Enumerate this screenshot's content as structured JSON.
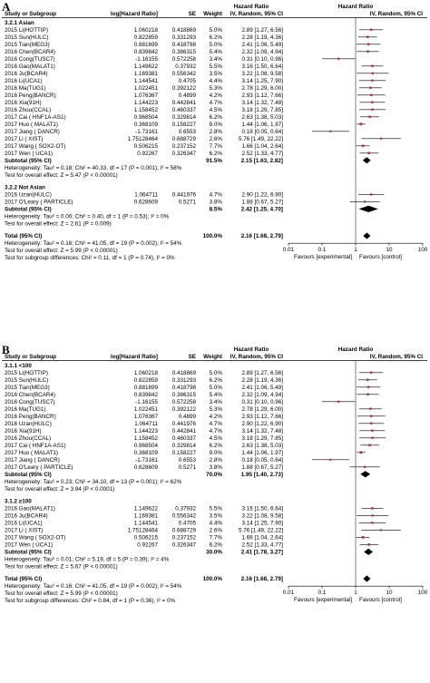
{
  "chart_data": {
    "type": "forest",
    "header": {
      "study_col": "Study or Subgroup",
      "log_hr_col": "log[Hazard Ratio]",
      "se_col": "SE",
      "weight_col": "Weight",
      "hr_col_title": "Hazard Ratio",
      "hr_col_sub": "IV, Random, 95% CI",
      "plot_col_title": "Hazard Ratio",
      "plot_col_sub": "IV, Random, 95% CI"
    },
    "x_scale": "log",
    "xlim": [
      0.01,
      100
    ],
    "x_ticks": [
      "0.01",
      "0.1",
      "1",
      "10",
      "100"
    ],
    "favours_left": "Favours [experimental]",
    "favours_right": "Favours [control]",
    "panels": [
      {
        "letter": "A",
        "subgroups": [
          {
            "title": "3.2.1 Asian",
            "studies": [
              {
                "name": "2015 Li(HOTTIP)",
                "loghr": "1.060218",
                "se": "0.418869",
                "weight": "5.0%",
                "ci_text": "2.89 [1.27, 6.56]",
                "hr": 2.89,
                "lo": 1.27,
                "hi": 6.56
              },
              {
                "name": "2015 Sun(HULC)",
                "loghr": "0.822859",
                "se": "0.331293",
                "weight": "6.2%",
                "ci_text": "2.28 [1.19, 4.36]",
                "hr": 2.28,
                "lo": 1.19,
                "hi": 4.36
              },
              {
                "name": "2015 Tian(MEG3)",
                "loghr": "0.881699",
                "se": "0.418798",
                "weight": "5.0%",
                "ci_text": "2.41 [1.06, 5.49]",
                "hr": 2.41,
                "lo": 1.06,
                "hi": 5.49
              },
              {
                "name": "2016 Chen(BCAR4)",
                "loghr": "0.839842",
                "se": "0.386315",
                "weight": "5.4%",
                "ci_text": "2.32 [1.09, 4.94]",
                "hr": 2.32,
                "lo": 1.09,
                "hi": 4.94
              },
              {
                "name": "2016 Cong(TUSC7)",
                "loghr": "-1.16155",
                "se": "0.572258",
                "weight": "3.4%",
                "ci_text": "0.31 [0.10, 0.96]",
                "hr": 0.31,
                "lo": 0.1,
                "hi": 0.96
              },
              {
                "name": "2016 Gao(MALAT1)",
                "loghr": "1.149622",
                "se": "0.37932",
                "weight": "5.5%",
                "ci_text": "3.16 [1.50, 6.64]",
                "hr": 3.16,
                "lo": 1.5,
                "hi": 6.64
              },
              {
                "name": "2016 Ju(BCAR4)",
                "loghr": "1.169381",
                "se": "0.556342",
                "weight": "3.5%",
                "ci_text": "3.22 [1.08, 9.58]",
                "hr": 3.22,
                "lo": 1.08,
                "hi": 9.58
              },
              {
                "name": "2016 Li(UCA1)",
                "loghr": "1.144541",
                "se": "0.4705",
                "weight": "4.4%",
                "ci_text": "3.14 [1.25, 7.90]",
                "hr": 3.14,
                "lo": 1.25,
                "hi": 7.9
              },
              {
                "name": "2016 Ma(TUG1)",
                "loghr": "1.022451",
                "se": "0.392122",
                "weight": "5.3%",
                "ci_text": "2.78 [1.29, 6.00]",
                "hr": 2.78,
                "lo": 1.29,
                "hi": 6.0
              },
              {
                "name": "2016 Peng(BANCR)",
                "loghr": "1.076367",
                "se": "0.4899",
                "weight": "4.2%",
                "ci_text": "2.93 [1.12, 7.66]",
                "hr": 2.93,
                "lo": 1.12,
                "hi": 7.66
              },
              {
                "name": "2016 Xia(91H)",
                "loghr": "1.144223",
                "se": "0.442841",
                "weight": "4.7%",
                "ci_text": "3.14 [1.32, 7.48]",
                "hr": 3.14,
                "lo": 1.32,
                "hi": 7.48
              },
              {
                "name": "2016 Zhou(CCAL)",
                "loghr": "1.158452",
                "se": "0.460337",
                "weight": "4.5%",
                "ci_text": "3.18 [1.29, 7.85]",
                "hr": 3.18,
                "lo": 1.29,
                "hi": 7.85
              },
              {
                "name": "2017 Cai ( HNF1A-AS1)",
                "loghr": "0.968504",
                "se": "0.329814",
                "weight": "6.2%",
                "ci_text": "2.63 [1.38, 5.03]",
                "hr": 2.63,
                "lo": 1.38,
                "hi": 5.03
              },
              {
                "name": "2017 Huo ( MALAT1)",
                "loghr": "0.368109",
                "se": "0.158227",
                "weight": "9.0%",
                "ci_text": "1.44 [1.06, 1.97]",
                "hr": 1.44,
                "lo": 1.06,
                "hi": 1.97
              },
              {
                "name": "2017 Jiang ( DANCR)",
                "loghr": "-1.73161",
                "se": "0.6553",
                "weight": "2.8%",
                "ci_text": "0.18 [0.05, 0.64]",
                "hr": 0.18,
                "lo": 0.05,
                "hi": 0.64
              },
              {
                "name": "2017 Li ( XIST)",
                "loghr": "1.75128464",
                "se": "0.688729",
                "weight": "2.6%",
                "ci_text": "5.76 [1.49, 22.22]",
                "hr": 5.76,
                "lo": 1.49,
                "hi": 22.22
              },
              {
                "name": "2017 Wang ( SOX2-OT)",
                "loghr": "0.506215",
                "se": "0.237152",
                "weight": "7.7%",
                "ci_text": "1.66 [1.04, 2.64]",
                "hr": 1.66,
                "lo": 1.04,
                "hi": 2.64
              },
              {
                "name": "2017 Wen ( UCA1)",
                "loghr": "0.92267",
                "se": "0.326347",
                "weight": "6.2%",
                "ci_text": "2.52 [1.33, 4.77]",
                "hr": 2.52,
                "lo": 1.33,
                "hi": 4.77
              }
            ],
            "subtotal": {
              "label": "Subtotal (95% CI)",
              "weight": "91.5%",
              "ci_text": "2.15 [1.63, 2.82]",
              "hr": 2.15,
              "lo": 1.63,
              "hi": 2.82
            },
            "heterogeneity": "Heterogeneity: Tau² = 0.18; Chi² = 40.33, df = 17 (P = 0.001); I² = 58%",
            "overall_effect": "Test for overall effect: Z = 5.47 (P < 0.00001)"
          },
          {
            "title": "3.2.2 Not Asian",
            "studies": [
              {
                "name": "2016 Uzan(HULC)",
                "loghr": "1.064711",
                "se": "0.441976",
                "weight": "4.7%",
                "ci_text": "2.90 [1.22, 6.90]",
                "hr": 2.9,
                "lo": 1.22,
                "hi": 6.9
              },
              {
                "name": "2017 O'Leary ( PARTICLE)",
                "loghr": "0.628609",
                "se": "0.5271",
                "weight": "3.8%",
                "ci_text": "1.88 [0.67, 5.27]",
                "hr": 1.88,
                "lo": 0.67,
                "hi": 5.27
              }
            ],
            "subtotal": {
              "label": "Subtotal (95% CI)",
              "weight": "8.5%",
              "ci_text": "2.42 [1.25, 4.70]",
              "hr": 2.42,
              "lo": 1.25,
              "hi": 4.7
            },
            "heterogeneity": "Heterogeneity: Tau² = 0.00; Chi² = 0.40, df = 1 (P = 0.53); I² = 0%",
            "overall_effect": "Test for overall effect: Z = 2.61 (P = 0.009)"
          }
        ],
        "total": {
          "label": "Total (95% CI)",
          "weight": "100.0%",
          "ci_text": "2.16 [1.68, 2.79]",
          "hr": 2.16,
          "lo": 1.68,
          "hi": 2.79
        },
        "total_heterogeneity": "Heterogeneity: Tau² = 0.16; Chi² = 41.05, df = 19 (P = 0.002); I² = 54%",
        "total_effect": "Test for overall effect: Z = 5.99 (P < 0.00001)",
        "subgroup_diff": "Test for subgroup differences: Chi² = 0.11, df = 1 (P = 0.74), I² = 0%"
      },
      {
        "letter": "B",
        "subgroups": [
          {
            "title": "3.1.1 <100",
            "studies": [
              {
                "name": "2015 Li(HOTTIP)",
                "loghr": "1.060218",
                "se": "0.418869",
                "weight": "5.0%",
                "ci_text": "2.89 [1.27, 6.56]",
                "hr": 2.89,
                "lo": 1.27,
                "hi": 6.56
              },
              {
                "name": "2015 Sun(HULC)",
                "loghr": "0.822859",
                "se": "0.331293",
                "weight": "6.2%",
                "ci_text": "2.28 [1.19, 4.36]",
                "hr": 2.28,
                "lo": 1.19,
                "hi": 4.36
              },
              {
                "name": "2015 Tian(MEG3)",
                "loghr": "0.881699",
                "se": "0.418798",
                "weight": "5.0%",
                "ci_text": "2.41 [1.06, 5.49]",
                "hr": 2.41,
                "lo": 1.06,
                "hi": 5.49
              },
              {
                "name": "2016 Chen(BCAR4)",
                "loghr": "0.839842",
                "se": "0.386315",
                "weight": "5.4%",
                "ci_text": "2.32 [1.09, 4.94]",
                "hr": 2.32,
                "lo": 1.09,
                "hi": 4.94
              },
              {
                "name": "2016 Cong(TUSC7)",
                "loghr": "-1.16155",
                "se": "0.572258",
                "weight": "3.4%",
                "ci_text": "0.31 [0.10, 0.96]",
                "hr": 0.31,
                "lo": 0.1,
                "hi": 0.96
              },
              {
                "name": "2016 Ma(TUG1)",
                "loghr": "1.022451",
                "se": "0.392122",
                "weight": "5.3%",
                "ci_text": "2.78 [1.29, 6.00]",
                "hr": 2.78,
                "lo": 1.29,
                "hi": 6.0
              },
              {
                "name": "2016 Peng(BANCR)",
                "loghr": "1.076367",
                "se": "0.4899",
                "weight": "4.2%",
                "ci_text": "2.93 [1.12, 7.66]",
                "hr": 2.93,
                "lo": 1.12,
                "hi": 7.66
              },
              {
                "name": "2016 Uzan(HULC)",
                "loghr": "1.064711",
                "se": "0.441976",
                "weight": "4.7%",
                "ci_text": "2.90 [1.22, 6.90]",
                "hr": 2.9,
                "lo": 1.22,
                "hi": 6.9
              },
              {
                "name": "2016 Xia(91H)",
                "loghr": "1.144223",
                "se": "0.442841",
                "weight": "4.7%",
                "ci_text": "3.14 [1.32, 7.48]",
                "hr": 3.14,
                "lo": 1.32,
                "hi": 7.48
              },
              {
                "name": "2016 Zhou(CCAL)",
                "loghr": "1.158452",
                "se": "0.460337",
                "weight": "4.5%",
                "ci_text": "3.18 [1.29, 7.85]",
                "hr": 3.18,
                "lo": 1.29,
                "hi": 7.85
              },
              {
                "name": "2017 Cai ( HNF1A-AS1)",
                "loghr": "0.968504",
                "se": "0.329814",
                "weight": "6.2%",
                "ci_text": "2.63 [1.38, 5.03]",
                "hr": 2.63,
                "lo": 1.38,
                "hi": 5.03
              },
              {
                "name": "2017 Huo ( MALAT1)",
                "loghr": "0.368109",
                "se": "0.158227",
                "weight": "9.0%",
                "ci_text": "1.44 [1.06, 1.97]",
                "hr": 1.44,
                "lo": 1.06,
                "hi": 1.97
              },
              {
                "name": "2017 Jiang ( DANCR)",
                "loghr": "-1.73161",
                "se": "0.6553",
                "weight": "2.8%",
                "ci_text": "0.18 [0.05, 0.64]",
                "hr": 0.18,
                "lo": 0.05,
                "hi": 0.64
              },
              {
                "name": "2017 O'Leary ( PARTICLE)",
                "loghr": "0.628609",
                "se": "0.5271",
                "weight": "3.8%",
                "ci_text": "1.88 [0.67, 5.27]",
                "hr": 1.88,
                "lo": 0.67,
                "hi": 5.27
              }
            ],
            "subtotal": {
              "label": "Subtotal (95% CI)",
              "weight": "70.0%",
              "ci_text": "1.95 [1.40, 2.73]",
              "hr": 1.95,
              "lo": 1.4,
              "hi": 2.73
            },
            "heterogeneity": "Heterogeneity: Tau² = 0.23; Chi² = 34.10, df = 13 (P = 0.001); I² = 62%",
            "overall_effect": "Test for overall effect: Z = 3.94 (P < 0.0001)"
          },
          {
            "title": "3.1.2 ≥100",
            "studies": [
              {
                "name": "2016 Gao(MALAT1)",
                "loghr": "1.149622",
                "se": "0.37932",
                "weight": "5.5%",
                "ci_text": "3.16 [1.50, 6.64]",
                "hr": 3.16,
                "lo": 1.5,
                "hi": 6.64
              },
              {
                "name": "2016 Ju(BCAR4)",
                "loghr": "1.169381",
                "se": "0.556342",
                "weight": "3.5%",
                "ci_text": "3.22 [1.08, 9.58]",
                "hr": 3.22,
                "lo": 1.08,
                "hi": 9.58
              },
              {
                "name": "2016 Li(UCA1)",
                "loghr": "1.144541",
                "se": "0.4705",
                "weight": "4.4%",
                "ci_text": "3.14 [1.25, 7.90]",
                "hr": 3.14,
                "lo": 1.25,
                "hi": 7.9
              },
              {
                "name": "2017 Li ( XIST)",
                "loghr": "1.75128464",
                "se": "0.688729",
                "weight": "2.6%",
                "ci_text": "5.76 [1.49, 22.22]",
                "hr": 5.76,
                "lo": 1.49,
                "hi": 22.22
              },
              {
                "name": "2017 Wang ( SOX2-OT)",
                "loghr": "0.506215",
                "se": "0.237152",
                "weight": "7.7%",
                "ci_text": "1.66 [1.04, 2.64]",
                "hr": 1.66,
                "lo": 1.04,
                "hi": 2.64
              },
              {
                "name": "2017 Wen ( UCA1)",
                "loghr": "0.92267",
                "se": "0.326347",
                "weight": "6.2%",
                "ci_text": "2.52 [1.33, 4.77]",
                "hr": 2.52,
                "lo": 1.33,
                "hi": 4.77
              }
            ],
            "subtotal": {
              "label": "Subtotal (95% CI)",
              "weight": "30.0%",
              "ci_text": "2.41 [1.78, 3.27]",
              "hr": 2.41,
              "lo": 1.78,
              "hi": 3.27
            },
            "heterogeneity": "Heterogeneity: Tau² = 0.01; Chi² = 5.19, df = 5 (P = 0.39); I² = 4%",
            "overall_effect": "Test for overall effect: Z = 5.67 (P < 0.00001)"
          }
        ],
        "total": {
          "label": "Total (95% CI)",
          "weight": "100.0%",
          "ci_text": "2.16 [1.68, 2.79]",
          "hr": 2.16,
          "lo": 1.68,
          "hi": 2.79
        },
        "total_heterogeneity": "Heterogeneity: Tau² = 0.16; Chi² = 41.05, df = 19 (P = 0.002); I² = 54%",
        "total_effect": "Test for overall effect: Z = 5.99 (P < 0.00001)",
        "subgroup_diff": "Test for subgroup differences: Chi² = 0.84, df = 1 (P = 0.36), I² = 0%"
      }
    ]
  }
}
